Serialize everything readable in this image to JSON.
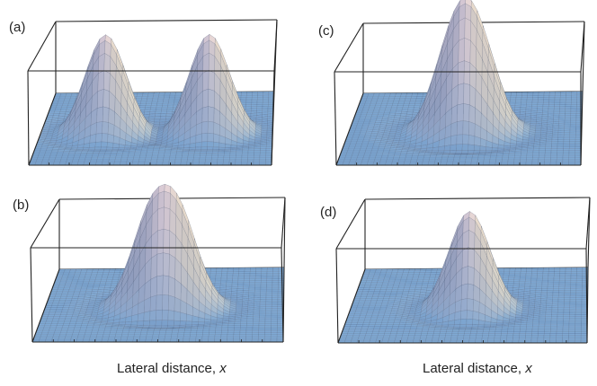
{
  "figure": {
    "panels": [
      {
        "label": "(a)",
        "peaks": [
          [
            -0.45,
            0,
            1.0
          ],
          [
            0.45,
            0,
            1.0
          ]
        ],
        "sigma": 0.17
      },
      {
        "label": "(b)",
        "peaks": [
          [
            -0.13,
            0,
            0.86
          ],
          [
            0.13,
            0,
            0.86
          ]
        ],
        "sigma": 0.17
      },
      {
        "label": "(c)",
        "peaks": [
          [
            -0.09,
            0,
            0.82
          ],
          [
            0.09,
            0,
            0.82
          ]
        ],
        "sigma": 0.19
      },
      {
        "label": "(d)",
        "peaks": [
          [
            0,
            0,
            1.0
          ]
        ],
        "sigma": 0.17
      }
    ],
    "captions": {
      "left_prefix": "Lateral distance, ",
      "left_var": "x",
      "right_prefix": "Lateral distance, ",
      "right_var": "x"
    },
    "colors": {
      "base": "#7fa9d4",
      "peak": "#f3dde0",
      "ridge": "#f4e6c7",
      "shadow": "#6e7fa8",
      "mesh": "#3a4a66",
      "box": "#222222"
    }
  }
}
